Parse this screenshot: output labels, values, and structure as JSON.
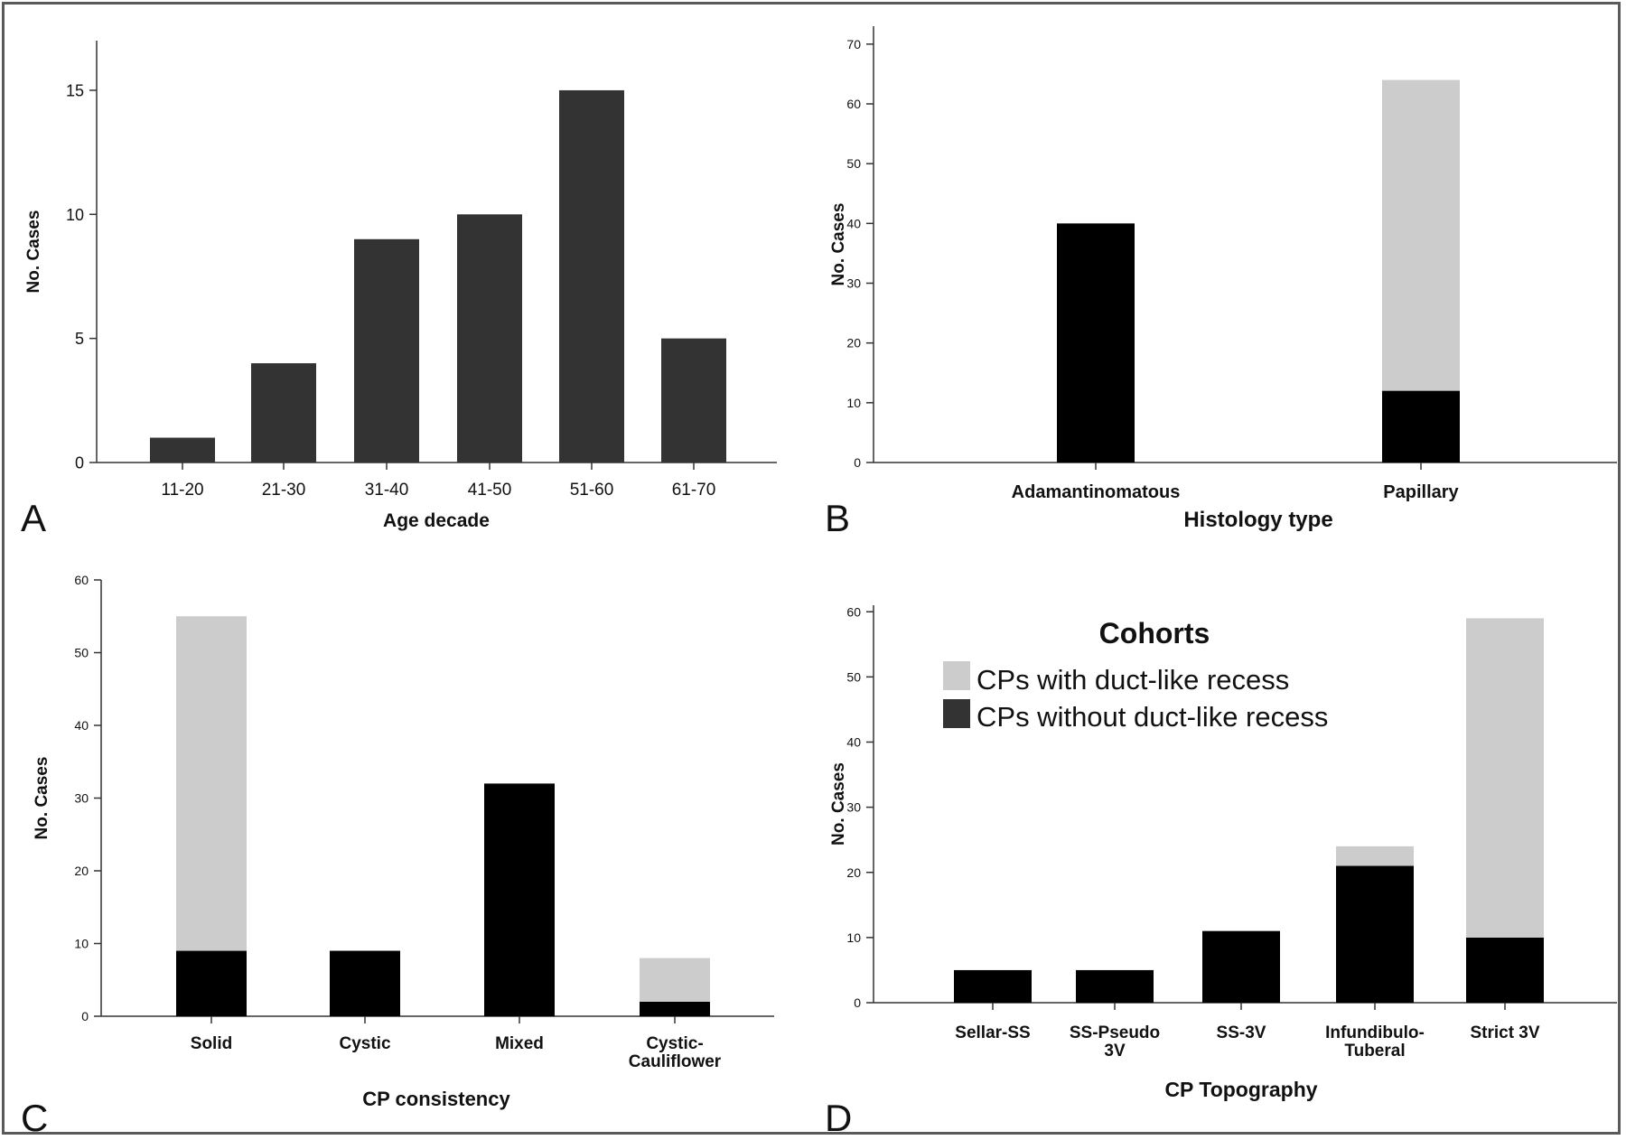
{
  "colors": {
    "panel_a_bar": "#333333",
    "with_recess": "#cccccc",
    "without_recess": "#000000",
    "axis": "#333333"
  },
  "legend": {
    "title": "Cohorts",
    "with_label": "CPs with duct-like recess",
    "without_label": "CPs without duct-like recess"
  },
  "chart_data": [
    {
      "panel": "A",
      "type": "bar",
      "categories": [
        "11-20",
        "21-30",
        "31-40",
        "41-50",
        "51-60",
        "61-70"
      ],
      "values": [
        1,
        4,
        9,
        10,
        15,
        5
      ],
      "xlabel": "Age decade",
      "ylabel": "No. Cases",
      "ylim": [
        0,
        17
      ],
      "yticks": [
        0,
        5,
        10,
        15
      ],
      "grid": false
    },
    {
      "panel": "B",
      "type": "bar",
      "stacked": true,
      "categories": [
        "Adamantinomatous",
        "Papillary"
      ],
      "series": [
        {
          "name": "CPs without duct-like recess",
          "values": [
            40,
            12
          ]
        },
        {
          "name": "CPs with duct-like recess",
          "values": [
            0,
            52
          ]
        }
      ],
      "xlabel": "Histology type",
      "ylabel": "No. Cases",
      "ylim": [
        0,
        73
      ],
      "yticks": [
        0,
        10,
        20,
        30,
        40,
        50,
        60,
        70
      ],
      "grid": false
    },
    {
      "panel": "C",
      "type": "bar",
      "stacked": true,
      "categories": [
        "Solid",
        "Cystic",
        "Mixed",
        "Cystic-\nCauliflower"
      ],
      "series": [
        {
          "name": "CPs without duct-like recess",
          "values": [
            9,
            9,
            32,
            2
          ]
        },
        {
          "name": "CPs with duct-like recess",
          "values": [
            46,
            0,
            0,
            6
          ]
        }
      ],
      "xlabel": "CP consistency",
      "ylabel": "No. Cases",
      "ylim": [
        0,
        60
      ],
      "yticks": [
        0,
        10,
        20,
        30,
        40,
        50,
        60
      ],
      "grid": false
    },
    {
      "panel": "D",
      "type": "bar",
      "stacked": true,
      "categories": [
        "Sellar-SS",
        "SS-Pseudo\n3V",
        "SS-3V",
        "Infundibulo-\nTuberal",
        "Strict 3V"
      ],
      "series": [
        {
          "name": "CPs without duct-like recess",
          "values": [
            5,
            5,
            11,
            21,
            10
          ]
        },
        {
          "name": "CPs with duct-like recess",
          "values": [
            0,
            0,
            0,
            3,
            49
          ]
        }
      ],
      "xlabel": "CP Topography",
      "ylabel": "No. Cases",
      "ylim": [
        0,
        61
      ],
      "yticks": [
        0,
        10,
        20,
        30,
        40,
        50,
        60
      ],
      "grid": false,
      "legend_position": "top-center"
    }
  ],
  "panel_letters": [
    "A",
    "B",
    "C",
    "D"
  ]
}
